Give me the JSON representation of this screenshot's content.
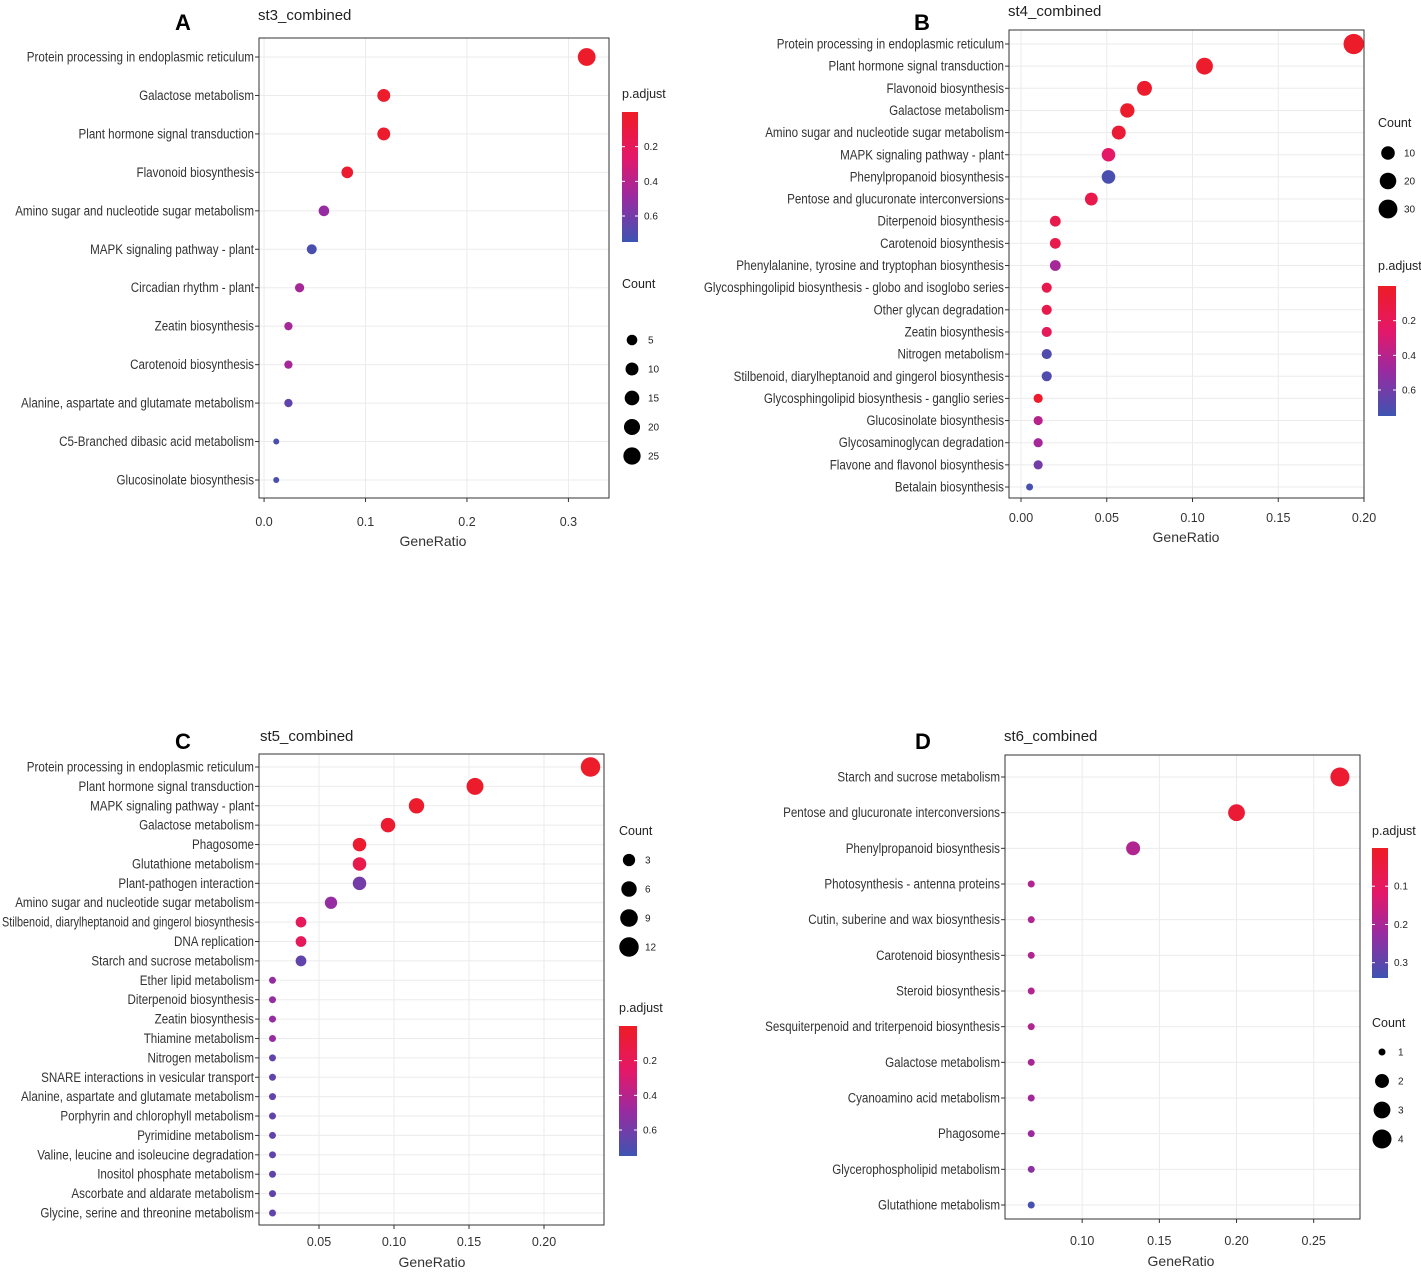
{
  "colors": {
    "low_padj": "#ee1c25",
    "mid_padj": "#c21d8a",
    "high_padj": "#3e54b1"
  },
  "chart_data": [
    {
      "panel": "A",
      "title": "st3_combined",
      "type": "scatter",
      "xlabel": "GeneRatio",
      "xlim": [
        -0.005,
        0.34
      ],
      "xticks": [
        0.0,
        0.1,
        0.2,
        0.3
      ],
      "xtick_labels": [
        "0.0",
        "0.1",
        "0.2",
        "0.3"
      ],
      "categories": [
        "Protein processing in endoplasmic reticulum",
        "Galactose metabolism",
        "Plant hormone signal transduction",
        "Flavonoid biosynthesis",
        "Amino sugar and nucleotide sugar metabolism",
        "MAPK signaling pathway - plant",
        "Circadian rhythm - plant",
        "Zeatin biosynthesis",
        "Carotenoid biosynthesis",
        "Alanine, aspartate and glutamate metabolism",
        "C5-Branched dibasic acid metabolism",
        "Glucosinolate biosynthesis"
      ],
      "gene_ratio": [
        0.318,
        0.118,
        0.118,
        0.082,
        0.059,
        0.047,
        0.035,
        0.024,
        0.024,
        0.024,
        0.012,
        0.012
      ],
      "count": [
        27,
        10,
        10,
        7,
        5,
        4,
        3,
        2,
        2,
        2,
        1,
        1
      ],
      "p_adjust": [
        0.02,
        0.03,
        0.03,
        0.05,
        0.5,
        0.72,
        0.45,
        0.45,
        0.45,
        0.65,
        0.72,
        0.72
      ],
      "color_legend": {
        "title": "p.adjust",
        "range": [
          0.0,
          0.75
        ],
        "ticks": [
          0.2,
          0.4,
          0.6
        ],
        "tick_labels": [
          "0.2",
          "0.4",
          "0.6"
        ],
        "position": "top-right"
      },
      "size_legend": {
        "title": "Count",
        "values": [
          5,
          10,
          15,
          20,
          25
        ],
        "labels": [
          "5",
          "10",
          "15",
          "20",
          "25"
        ],
        "position": "right"
      }
    },
    {
      "panel": "B",
      "title": "st4_combined",
      "type": "scatter",
      "xlabel": "GeneRatio",
      "xlim": [
        -0.007,
        0.2
      ],
      "xticks": [
        0.0,
        0.05,
        0.1,
        0.15,
        0.2
      ],
      "xtick_labels": [
        "0.00",
        "0.05",
        "0.10",
        "0.15",
        "0.20"
      ],
      "categories": [
        "Protein processing in endoplasmic reticulum",
        "Plant hormone signal transduction",
        "Flavonoid biosynthesis",
        "Galactose metabolism",
        "Amino sugar and nucleotide sugar metabolism",
        "MAPK signaling pathway - plant",
        "Phenylpropanoid biosynthesis",
        "Pentose and glucuronate interconversions",
        "Diterpenoid biosynthesis",
        "Carotenoid biosynthesis",
        "Phenylalanine, tyrosine and tryptophan biosynthesis",
        "Glycosphingolipid biosynthesis - globo and isoglobo series",
        "Other glycan degradation",
        "Zeatin biosynthesis",
        "Nitrogen metabolism",
        "Stilbenoid, diarylheptanoid and gingerol biosynthesis",
        "Glycosphingolipid biosynthesis - ganglio series",
        "Glucosinolate biosynthesis",
        "Glycosaminoglycan degradation",
        "Flavone and flavonol biosynthesis",
        "Betalain biosynthesis"
      ],
      "gene_ratio": [
        0.194,
        0.107,
        0.072,
        0.062,
        0.057,
        0.051,
        0.051,
        0.041,
        0.02,
        0.02,
        0.02,
        0.015,
        0.015,
        0.015,
        0.015,
        0.015,
        0.01,
        0.01,
        0.01,
        0.01,
        0.005
      ],
      "count": [
        38,
        21,
        14,
        12,
        11,
        10,
        10,
        8,
        4,
        4,
        4,
        3,
        3,
        3,
        3,
        3,
        2,
        2,
        2,
        2,
        1
      ],
      "p_adjust": [
        0.02,
        0.03,
        0.03,
        0.03,
        0.06,
        0.25,
        0.72,
        0.15,
        0.15,
        0.15,
        0.45,
        0.15,
        0.15,
        0.2,
        0.7,
        0.7,
        0.03,
        0.4,
        0.45,
        0.6,
        0.72
      ],
      "color_legend": {
        "title": "p.adjust",
        "range": [
          0.0,
          0.75
        ],
        "ticks": [
          0.2,
          0.4,
          0.6
        ],
        "tick_labels": [
          "0.2",
          "0.4",
          "0.6"
        ],
        "position": "right"
      },
      "size_legend": {
        "title": "Count",
        "values": [
          10,
          20,
          30
        ],
        "labels": [
          "10",
          "20",
          "30"
        ],
        "position": "top-right"
      }
    },
    {
      "panel": "C",
      "title": "st5_combined",
      "type": "scatter",
      "xlabel": "GeneRatio",
      "xlim": [
        0.01,
        0.24
      ],
      "xticks": [
        0.05,
        0.1,
        0.15,
        0.2
      ],
      "xtick_labels": [
        "0.05",
        "0.10",
        "0.15",
        "0.20"
      ],
      "categories": [
        "Protein processing in endoplasmic reticulum",
        "Plant hormone signal transduction",
        "MAPK signaling pathway - plant",
        "Galactose metabolism",
        "Phagosome",
        "Glutathione metabolism",
        "Plant-pathogen interaction",
        "Amino sugar and nucleotide sugar metabolism",
        "Stilbenoid, diarylheptanoid and gingerol biosynthesis",
        "DNA replication",
        "Starch and sucrose metabolism",
        "Ether lipid metabolism",
        "Diterpenoid biosynthesis",
        "Zeatin biosynthesis",
        "Thiamine metabolism",
        "Nitrogen metabolism",
        "SNARE interactions in vesicular transport",
        "Alanine, aspartate and glutamate metabolism",
        "Porphyrin and chlorophyll metabolism",
        "Pyrimidine metabolism",
        "Valine, leucine and isoleucine degradation",
        "Inositol phosphate metabolism",
        "Ascorbate and aldarate metabolism",
        "Glycine, serine and threonine metabolism"
      ],
      "gene_ratio": [
        0.231,
        0.154,
        0.115,
        0.096,
        0.077,
        0.077,
        0.077,
        0.058,
        0.038,
        0.038,
        0.038,
        0.019,
        0.019,
        0.019,
        0.019,
        0.019,
        0.019,
        0.019,
        0.019,
        0.019,
        0.019,
        0.019,
        0.019,
        0.019
      ],
      "count": [
        12,
        8,
        6,
        5,
        4,
        4,
        4,
        3,
        2,
        2,
        2,
        1,
        1,
        1,
        1,
        1,
        1,
        1,
        1,
        1,
        1,
        1,
        1,
        1
      ],
      "p_adjust": [
        0.02,
        0.03,
        0.03,
        0.04,
        0.04,
        0.15,
        0.6,
        0.5,
        0.2,
        0.2,
        0.65,
        0.5,
        0.5,
        0.5,
        0.5,
        0.65,
        0.65,
        0.65,
        0.65,
        0.65,
        0.65,
        0.65,
        0.65,
        0.65
      ],
      "color_legend": {
        "title": "p.adjust",
        "range": [
          0.0,
          0.75
        ],
        "ticks": [
          0.2,
          0.4,
          0.6
        ],
        "tick_labels": [
          "0.2",
          "0.4",
          "0.6"
        ],
        "position": "right"
      },
      "size_legend": {
        "title": "Count",
        "values": [
          3,
          6,
          9,
          12
        ],
        "labels": [
          "3",
          "6",
          "9",
          "12"
        ],
        "position": "top-right"
      }
    },
    {
      "panel": "D",
      "title": "st6_combined",
      "type": "scatter",
      "xlabel": "GeneRatio",
      "xlim": [
        0.05,
        0.28
      ],
      "xticks": [
        0.1,
        0.15,
        0.2,
        0.25
      ],
      "xtick_labels": [
        "0.10",
        "0.15",
        "0.20",
        "0.25"
      ],
      "categories": [
        "Starch and sucrose metabolism",
        "Pentose and glucuronate interconversions",
        "Phenylpropanoid biosynthesis",
        "Photosynthesis - antenna proteins",
        "Cutin, suberine and wax biosynthesis",
        "Carotenoid biosynthesis",
        "Steroid biosynthesis",
        "Sesquiterpenoid and triterpenoid biosynthesis",
        "Galactose metabolism",
        "Cyanoamino acid metabolism",
        "Phagosome",
        "Glycerophospholipid metabolism",
        "Glutathione metabolism"
      ],
      "gene_ratio": [
        0.267,
        0.2,
        0.133,
        0.067,
        0.067,
        0.067,
        0.067,
        0.067,
        0.067,
        0.067,
        0.067,
        0.067,
        0.067
      ],
      "count": [
        4,
        3,
        2,
        1,
        1,
        1,
        1,
        1,
        1,
        1,
        1,
        1,
        1
      ],
      "p_adjust": [
        0.02,
        0.03,
        0.19,
        0.19,
        0.19,
        0.19,
        0.19,
        0.19,
        0.2,
        0.21,
        0.22,
        0.24,
        0.33
      ],
      "color_legend": {
        "title": "p.adjust",
        "range": [
          0.0,
          0.34
        ],
        "ticks": [
          0.1,
          0.2,
          0.3
        ],
        "tick_labels": [
          "0.1",
          "0.2",
          "0.3"
        ],
        "position": "top-right"
      },
      "size_legend": {
        "title": "Count",
        "values": [
          1,
          2,
          3,
          4
        ],
        "labels": [
          "1",
          "2",
          "3",
          "4"
        ],
        "position": "right"
      }
    }
  ]
}
